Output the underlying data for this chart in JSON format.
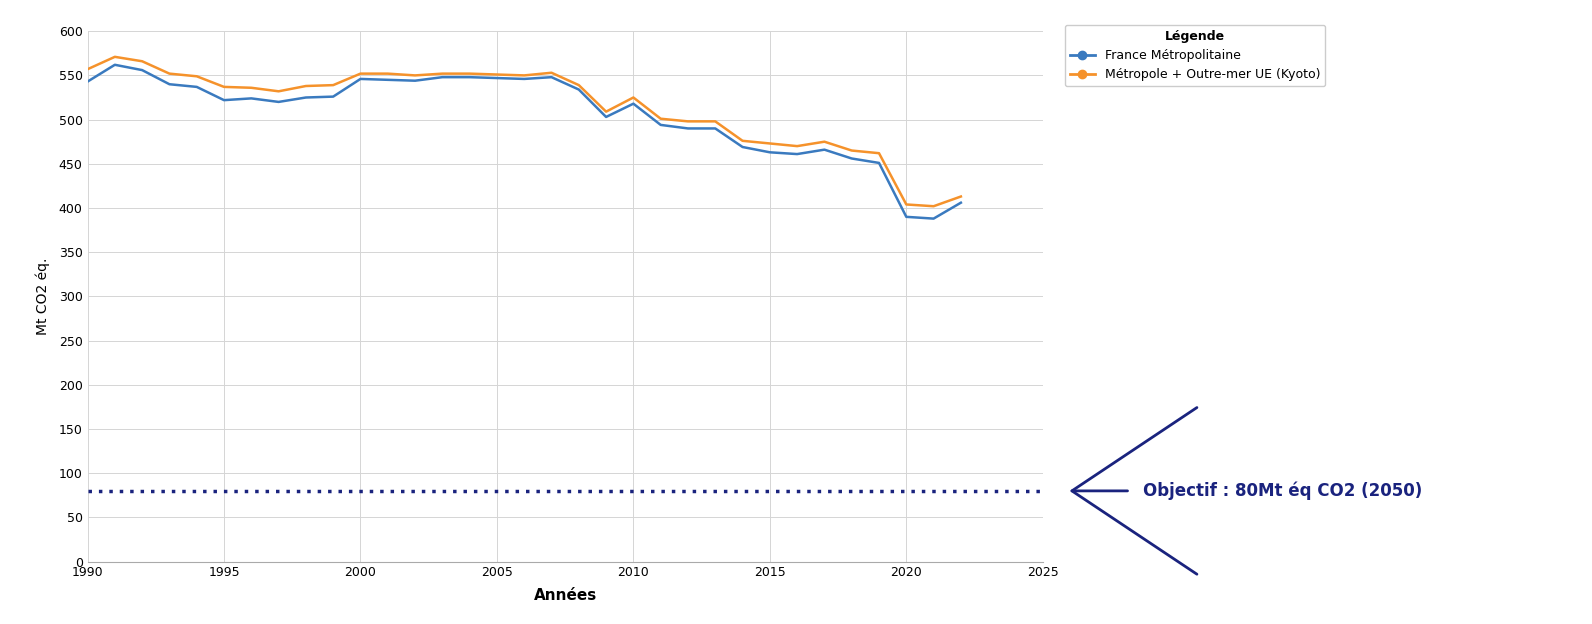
{
  "years": [
    1990,
    1991,
    1992,
    1993,
    1994,
    1995,
    1996,
    1997,
    1998,
    1999,
    2000,
    2001,
    2002,
    2003,
    2004,
    2005,
    2006,
    2007,
    2008,
    2009,
    2010,
    2011,
    2012,
    2013,
    2014,
    2015,
    2016,
    2017,
    2018,
    2019,
    2020,
    2021,
    2022
  ],
  "france_metro": [
    543,
    562,
    556,
    540,
    537,
    522,
    524,
    520,
    525,
    526,
    546,
    545,
    544,
    548,
    548,
    547,
    546,
    548,
    534,
    503,
    518,
    494,
    490,
    490,
    469,
    463,
    461,
    466,
    456,
    451,
    390,
    388,
    406
  ],
  "metro_outremer": [
    557,
    571,
    566,
    552,
    549,
    537,
    536,
    532,
    538,
    539,
    552,
    552,
    550,
    552,
    552,
    551,
    550,
    553,
    539,
    509,
    525,
    501,
    498,
    498,
    476,
    473,
    470,
    475,
    465,
    462,
    404,
    402,
    413
  ],
  "objective_value": 80,
  "color_metro": "#3a7abf",
  "color_outremer": "#f5922b",
  "color_objective": "#1a237e",
  "xlabel": "Années",
  "ylabel": "Mt CO2 éq.",
  "legend_title": "Légende",
  "legend_metro": "France Métropolitaine",
  "legend_outremer": "Métropole + Outre-mer UE (Kyoto)",
  "objective_label": "Objectif : 80Mt éq CO2 (2050)",
  "xlim": [
    1990,
    2025
  ],
  "ylim": [
    0,
    600
  ],
  "yticks": [
    0,
    50,
    100,
    150,
    200,
    250,
    300,
    350,
    400,
    450,
    500,
    550,
    600
  ],
  "xticks": [
    1990,
    1995,
    2000,
    2005,
    2010,
    2015,
    2020,
    2025
  ],
  "background_color": "#ffffff",
  "grid_color": "#d5d5d5"
}
